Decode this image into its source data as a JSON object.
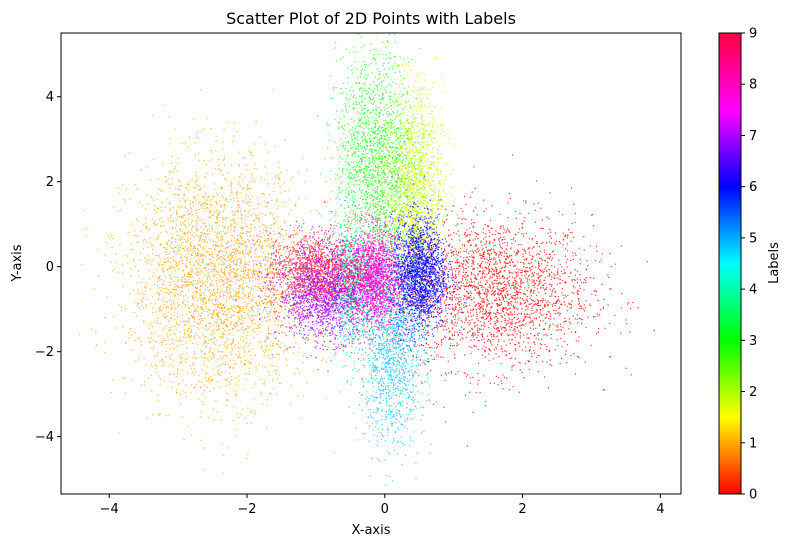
{
  "chart_data": {
    "type": "scatter",
    "title": "Scatter Plot of 2D Points with Labels",
    "xlabel": "X-axis",
    "ylabel": "Y-axis",
    "xlim": [
      -4.7,
      4.3
    ],
    "ylim": [
      -5.35,
      5.5
    ],
    "xticks": [
      -4,
      -2,
      0,
      2,
      4
    ],
    "yticks": [
      -4,
      -2,
      0,
      2,
      4
    ],
    "grid": false,
    "colorbar": {
      "label": "Labels",
      "range": [
        0,
        9
      ],
      "ticks": [
        0,
        1,
        2,
        3,
        4,
        5,
        6,
        7,
        8,
        9
      ],
      "colormap": "hsv"
    },
    "clusters": [
      {
        "label": 0,
        "color": "#ff0000",
        "center": [
          1.6,
          -0.6
        ],
        "spread": [
          0.7,
          0.9
        ],
        "n": 2400
      },
      {
        "label": 1,
        "color": "#ffa500",
        "center": [
          -2.4,
          -0.3
        ],
        "spread": [
          0.65,
          1.35
        ],
        "n": 3200
      },
      {
        "label": 2,
        "color": "#c8ff00",
        "center": [
          0.4,
          1.9
        ],
        "spread": [
          0.22,
          1.1
        ],
        "n": 1800
      },
      {
        "label": 3,
        "color": "#22ff22",
        "center": [
          -0.15,
          2.4
        ],
        "spread": [
          0.28,
          1.3
        ],
        "n": 1800
      },
      {
        "label": 4,
        "color": "#00ff99",
        "center": [
          -0.5,
          -0.4
        ],
        "spread": [
          0.14,
          0.7
        ],
        "n": 700
      },
      {
        "label": 5,
        "color": "#18c6ff",
        "center": [
          0.1,
          -1.9
        ],
        "spread": [
          0.24,
          1.1
        ],
        "n": 1500
      },
      {
        "label": 6,
        "color": "#0a00ff",
        "center": [
          0.5,
          -0.2
        ],
        "spread": [
          0.2,
          0.65
        ],
        "n": 2000
      },
      {
        "label": 7,
        "color": "#a000ff",
        "center": [
          -0.85,
          -0.6
        ],
        "spread": [
          0.35,
          0.55
        ],
        "n": 2000
      },
      {
        "label": 8,
        "color": "#ff00d0",
        "center": [
          -0.15,
          -0.2
        ],
        "spread": [
          0.18,
          0.55
        ],
        "n": 1500
      },
      {
        "label": 9,
        "color": "#ff2040",
        "center": [
          -1.0,
          -0.1
        ],
        "spread": [
          0.35,
          0.45
        ],
        "n": 1200
      }
    ]
  }
}
